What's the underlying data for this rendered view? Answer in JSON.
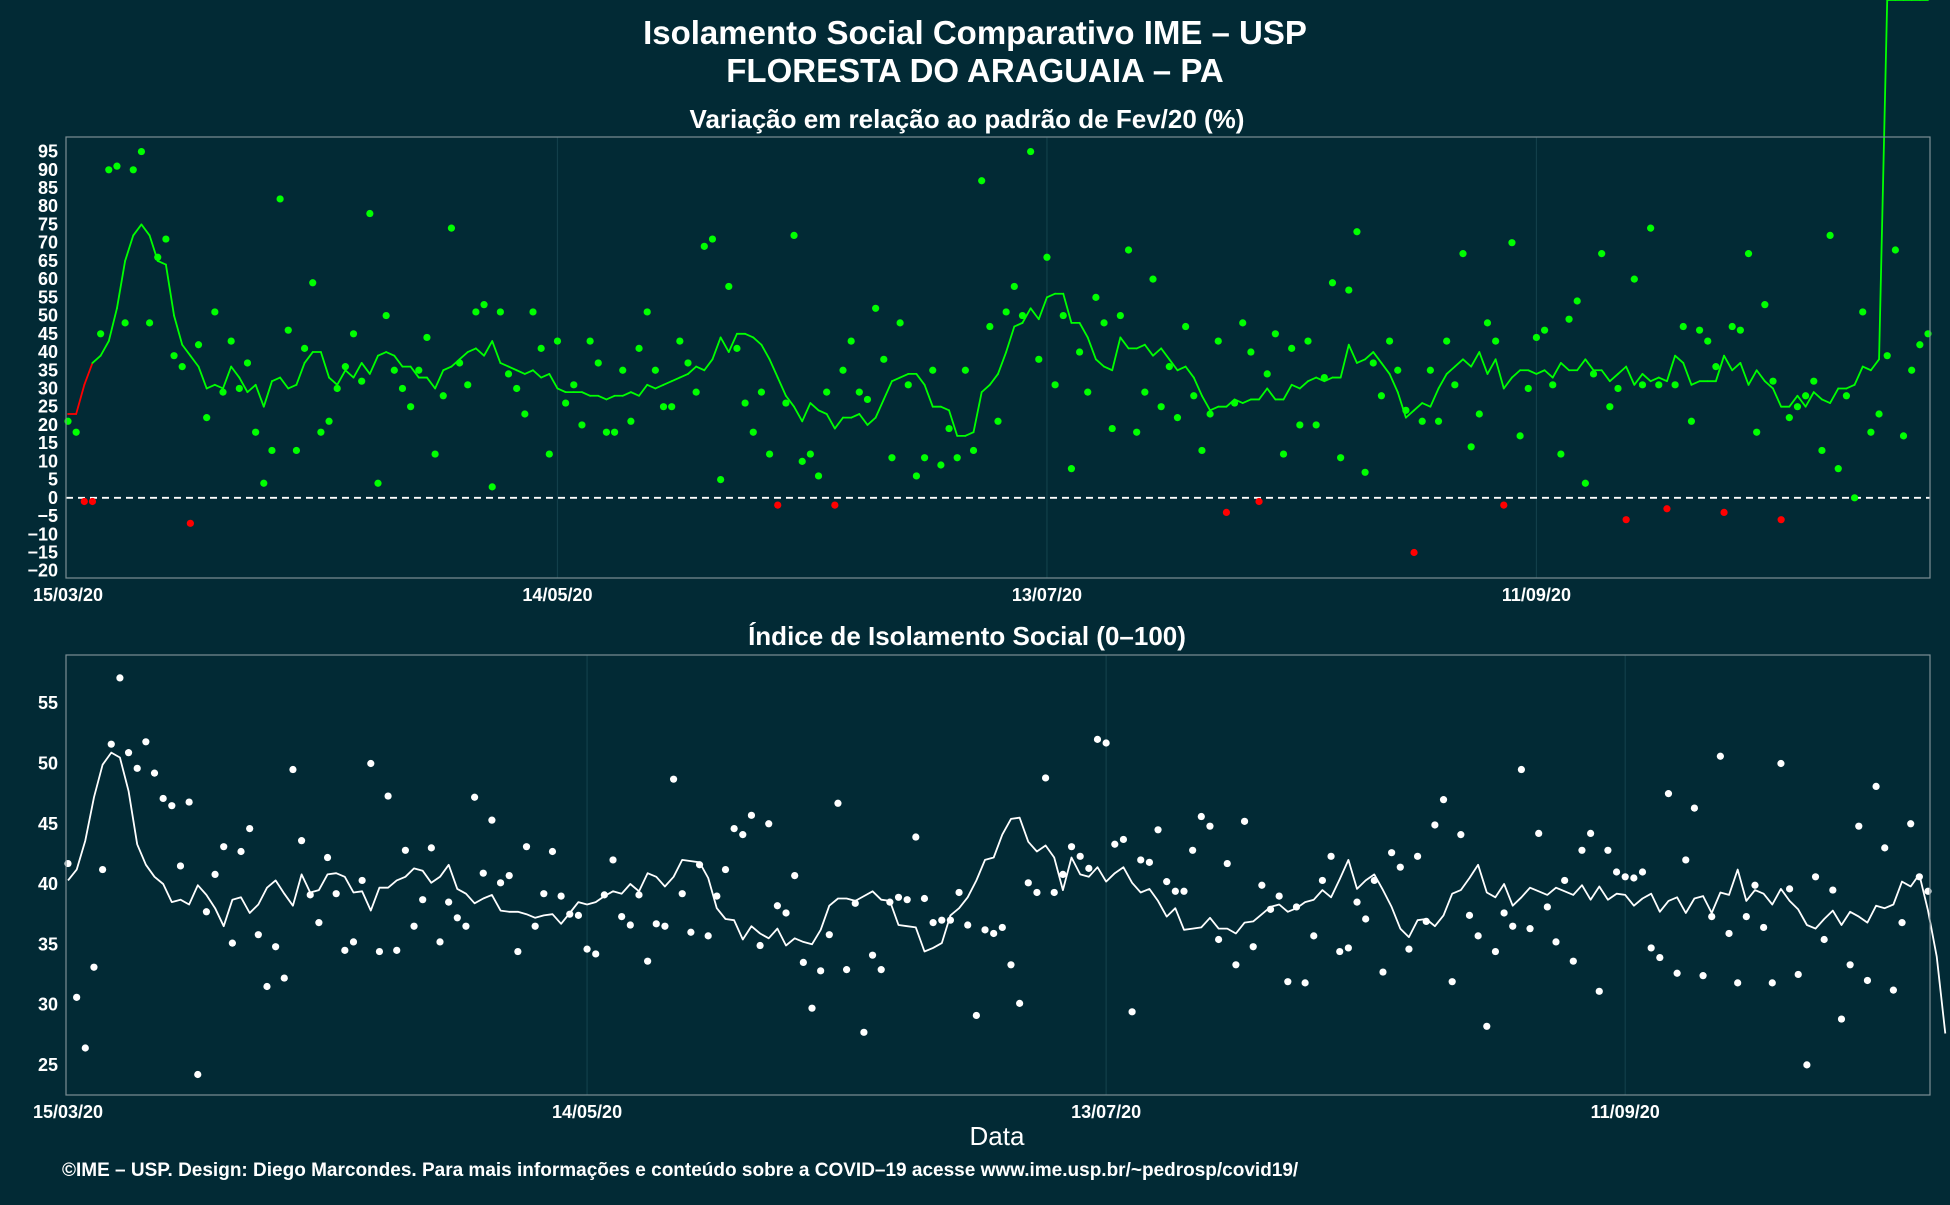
{
  "title_line1": "Isolamento Social Comparativo IME – USP",
  "title_line2": "FLORESTA DO ARAGUAIA – PA",
  "caption": "©IME – USP. Design: Diego Marcondes. Para mais informações e conteúdo sobre a COVID–19 acesse www.ime.usp.br/~pedrosp/covid19/",
  "colors": {
    "background": "#022a35",
    "positive": "#00ff00",
    "negative": "#ff0000",
    "index": "#ffffff",
    "panel_border": "#7c8f94",
    "grid": "#123f4a"
  },
  "chart_data": [
    {
      "type": "scatter",
      "title": "Variação em relação ao padrão de Fev/20 (%)",
      "xlabel": "",
      "ylabel": "",
      "x_start": "2020-03-15",
      "x_tick_labels": [
        "15/03/20",
        "14/05/20",
        "13/07/20",
        "11/09/20"
      ],
      "ylim": [
        -22,
        99
      ],
      "y_ticks": [
        -20,
        -15,
        -10,
        -5,
        0,
        5,
        10,
        15,
        20,
        25,
        30,
        35,
        40,
        45,
        50,
        55,
        60,
        65,
        70,
        75,
        80,
        85,
        90,
        95
      ],
      "reference_line": 0,
      "series": [
        {
          "role": "points",
          "values": [
            21,
            18,
            -1,
            -1,
            45,
            90,
            91,
            48,
            90,
            95,
            48,
            66,
            71,
            39,
            36,
            -7,
            42,
            22,
            51,
            29,
            43,
            30,
            37,
            18,
            4,
            13,
            82,
            46,
            13,
            41,
            59,
            18,
            21,
            30,
            36,
            45,
            32,
            78,
            4,
            50,
            35,
            30,
            25,
            35,
            44,
            12,
            28,
            74,
            37,
            31,
            51,
            53,
            3,
            51,
            34,
            30,
            23,
            51,
            41,
            12,
            43,
            26,
            31,
            20,
            43,
            37,
            18,
            18,
            35,
            21,
            41,
            51,
            35,
            25,
            25,
            43,
            37,
            29,
            69,
            71,
            5,
            58,
            41,
            26,
            18,
            29,
            12,
            -2,
            26,
            72,
            10,
            12,
            6,
            29,
            -2,
            35,
            43,
            29,
            27,
            52,
            38,
            11,
            48,
            31,
            6,
            11,
            35,
            9,
            19,
            11,
            35,
            13,
            87,
            47,
            21,
            51,
            58,
            50,
            95,
            38,
            66,
            31,
            50,
            8,
            40,
            29,
            55,
            48,
            19,
            50,
            68,
            18,
            29,
            60,
            25,
            36,
            22,
            47,
            28,
            13,
            23,
            43,
            -4,
            26,
            48,
            40,
            -1,
            34,
            45,
            12,
            41,
            20,
            43,
            20,
            33,
            59,
            11,
            57,
            73,
            7,
            37,
            28,
            43,
            35,
            24,
            -15,
            21,
            35,
            21,
            43,
            31,
            67,
            14,
            23,
            48,
            43,
            -2,
            70,
            17,
            30,
            44,
            46,
            31,
            12,
            49,
            54,
            4,
            34,
            67,
            25,
            30,
            -6,
            60,
            31,
            74,
            31,
            -3,
            31,
            47,
            21,
            46,
            43,
            36,
            -4,
            47,
            46,
            67,
            18,
            53,
            32,
            -6,
            22,
            25,
            28,
            32,
            13,
            72,
            8,
            28,
            0,
            51,
            18,
            23,
            39,
            68,
            17,
            35,
            42,
            45
          ]
        },
        {
          "role": "7-day average",
          "values": [
            23,
            23,
            31,
            37,
            39,
            43,
            52,
            65,
            72,
            75,
            72,
            65,
            64,
            50,
            42,
            39,
            36,
            30,
            31,
            30,
            36,
            33,
            29,
            31,
            25,
            32,
            33,
            30,
            31,
            37,
            40,
            40,
            33,
            31,
            35,
            33,
            37,
            34,
            39,
            40,
            39,
            36,
            36,
            33,
            33,
            30,
            35,
            36,
            38,
            40,
            41,
            39,
            43,
            37,
            36,
            35,
            34,
            35,
            33,
            34,
            30,
            29,
            29,
            29,
            28,
            28,
            27,
            28,
            28,
            29,
            28,
            31,
            30,
            31,
            32,
            33,
            34,
            36,
            35,
            38,
            44,
            40,
            45,
            45,
            44,
            42,
            38,
            33,
            28,
            25,
            21,
            26,
            24,
            23,
            19,
            22,
            22,
            23,
            20,
            22,
            27,
            32,
            33,
            34,
            34,
            31,
            25,
            25,
            24,
            17,
            17,
            18,
            29,
            31,
            34,
            40,
            47,
            48,
            52,
            49,
            55,
            56,
            56,
            48,
            48,
            44,
            38,
            36,
            35,
            44,
            41,
            41,
            42,
            39,
            41,
            38,
            35,
            36,
            33,
            28,
            24,
            25,
            25,
            27,
            26,
            27,
            27,
            30,
            27,
            27,
            31,
            30,
            32,
            33,
            32,
            33,
            33,
            42,
            37,
            38,
            40,
            37,
            34,
            29,
            22,
            24,
            26,
            25,
            30,
            34,
            36,
            38,
            36,
            40,
            34,
            38,
            30,
            33,
            35,
            35,
            34,
            35,
            33,
            37,
            35,
            35,
            38,
            35,
            35,
            32,
            34,
            36,
            31,
            34,
            32,
            33,
            32,
            39,
            37,
            31,
            32,
            32,
            32,
            39,
            35,
            37,
            31,
            35,
            32,
            30,
            25,
            25,
            28,
            25,
            29,
            27,
            26,
            30,
            30,
            31,
            36,
            35,
            38
          ]
        }
      ]
    },
    {
      "type": "scatter",
      "title": "Índice de Isolamento Social (0–100)",
      "xlabel": "Data",
      "ylabel": "",
      "x_start": "2020-03-15",
      "x_tick_labels": [
        "15/03/20",
        "14/05/20",
        "13/07/20",
        "11/09/20"
      ],
      "ylim": [
        22.5,
        59
      ],
      "y_ticks": [
        25,
        30,
        35,
        40,
        45,
        50,
        55
      ],
      "series": [
        {
          "role": "points",
          "values": [
            41.7,
            30.6,
            26.4,
            33.1,
            41.2,
            51.6,
            57.1,
            50.9,
            49.6,
            51.8,
            49.2,
            47.1,
            46.5,
            41.5,
            46.8,
            24.2,
            37.7,
            40.8,
            43.1,
            35.1,
            42.7,
            44.6,
            35.8,
            31.5,
            34.8,
            32.2,
            49.5,
            43.6,
            39.1,
            36.8,
            42.2,
            39.2,
            34.5,
            35.2,
            40.3,
            50.0,
            34.4,
            47.3,
            34.5,
            42.8,
            36.5,
            38.7,
            43.0,
            35.2,
            38.5,
            37.2,
            36.5,
            47.2,
            40.9,
            45.3,
            40.1,
            40.7,
            34.4,
            43.1,
            36.5,
            39.2,
            42.7,
            39.0,
            37.5,
            37.4,
            34.6,
            34.2,
            39.1,
            42.0,
            37.3,
            36.6,
            39.1,
            33.6,
            36.7,
            36.5,
            48.7,
            39.2,
            36.0,
            41.6,
            35.7,
            39.0,
            41.2,
            44.6,
            44.1,
            45.7,
            34.9,
            45.0,
            38.2,
            37.6,
            40.7,
            33.5,
            29.7,
            32.8,
            35.8,
            46.7,
            32.9,
            38.4,
            27.7,
            34.1,
            32.9,
            38.5,
            38.9,
            38.7,
            43.9,
            38.8,
            36.8,
            37.0,
            37.0,
            39.3,
            36.6,
            29.1,
            36.2,
            35.9,
            36.4,
            33.3,
            30.1,
            40.1,
            39.3,
            48.8,
            39.3,
            40.8,
            43.1,
            42.3,
            41.3,
            52.0,
            51.7,
            43.3,
            43.7,
            29.4,
            42.0,
            41.8,
            44.5,
            40.2,
            39.4,
            39.4,
            42.8,
            45.6,
            44.8,
            35.4,
            41.7,
            33.3,
            45.2,
            34.8,
            39.9,
            37.9,
            39.0,
            31.9,
            38.1,
            31.8,
            35.7,
            40.3,
            42.3,
            34.4,
            34.7,
            38.5,
            37.1,
            40.3,
            32.7,
            42.6,
            41.4,
            34.6,
            42.3,
            36.9,
            44.9,
            47.0,
            31.9,
            44.1,
            37.4,
            35.7,
            28.2,
            34.4,
            37.6,
            36.5,
            49.5,
            36.3,
            44.2,
            38.1,
            35.2,
            40.3,
            33.6,
            42.8,
            44.2,
            31.1,
            42.8,
            41.0,
            40.6,
            40.5,
            41.0,
            34.7,
            33.9,
            47.5,
            32.6,
            42.0,
            46.3,
            32.4,
            37.3,
            50.6,
            35.9,
            31.8,
            37.3,
            39.9,
            36.4,
            31.8,
            50.0,
            39.6,
            32.5,
            25.0,
            40.6,
            35.4,
            39.5,
            28.8,
            33.3,
            44.8,
            32.0,
            48.1,
            43.0,
            31.2,
            36.8,
            45.0,
            40.6,
            39.4
          ]
        },
        {
          "role": "7-day average",
          "values": [
            40.3,
            41.2,
            43.6,
            47.2,
            49.9,
            50.9,
            50.5,
            47.7,
            43.3,
            41.6,
            40.6,
            40.0,
            38.5,
            38.7,
            38.3,
            39.9,
            39.1,
            38.0,
            36.5,
            38.7,
            38.9,
            37.6,
            38.3,
            39.7,
            40.3,
            39.2,
            38.2,
            40.8,
            39.3,
            39.5,
            40.8,
            40.9,
            40.6,
            39.3,
            39.4,
            37.8,
            39.7,
            39.7,
            40.3,
            40.6,
            41.3,
            41.1,
            40.1,
            40.6,
            41.6,
            39.6,
            39.2,
            38.4,
            38.8,
            39.1,
            37.8,
            37.7,
            37.7,
            37.5,
            37.2,
            37.4,
            37.5,
            36.7,
            37.6,
            38.5,
            38.3,
            38.5,
            39.0,
            39.4,
            39.2,
            40.0,
            39.4,
            40.9,
            40.6,
            39.8,
            40.6,
            42.0,
            41.9,
            41.8,
            40.5,
            38.0,
            37.1,
            37.0,
            35.4,
            36.5,
            35.9,
            35.5,
            36.3,
            34.9,
            35.5,
            35.2,
            35.0,
            36.2,
            38.2,
            38.8,
            38.8,
            38.6,
            39.0,
            39.4,
            38.7,
            38.6,
            36.6,
            36.5,
            36.4,
            34.4,
            34.7,
            35.1,
            37.4,
            38.0,
            38.9,
            40.3,
            42.0,
            42.2,
            44.1,
            45.4,
            45.5,
            43.5,
            42.7,
            43.2,
            42.2,
            39.5,
            42.2,
            40.8,
            40.6,
            41.4,
            40.2,
            40.9,
            41.4,
            40.1,
            39.3,
            39.6,
            38.6,
            37.3,
            38.0,
            36.2,
            36.3,
            36.4,
            37.2,
            36.3,
            36.3,
            35.9,
            36.8,
            36.9,
            37.5,
            38.1,
            38.3,
            37.7,
            38.0,
            38.5,
            38.7,
            39.5,
            38.9,
            40.4,
            42.0,
            39.6,
            40.3,
            40.8,
            39.5,
            38.1,
            36.3,
            35.6,
            37.0,
            37.1,
            36.5,
            37.4,
            39.2,
            39.5,
            40.5,
            41.6,
            39.3,
            38.9,
            40.0,
            38.2,
            38.9,
            39.7,
            39.4,
            39.1,
            39.7,
            39.4,
            39.1,
            39.9,
            38.7,
            39.8,
            38.7,
            39.2,
            39.1,
            38.2,
            38.8,
            39.2,
            37.7,
            38.6,
            38.9,
            37.6,
            38.8,
            39.0,
            37.6,
            39.3,
            39.1,
            41.2,
            38.6,
            39.5,
            39.2,
            38.3,
            39.6,
            38.6,
            37.9,
            36.6,
            36.3,
            37.1,
            37.8,
            36.6,
            37.7,
            37.3,
            36.8,
            38.2,
            38.0,
            38.3,
            40.2,
            39.8,
            40.8,
            37.8,
            34.0,
            27.6
          ]
        }
      ]
    }
  ]
}
